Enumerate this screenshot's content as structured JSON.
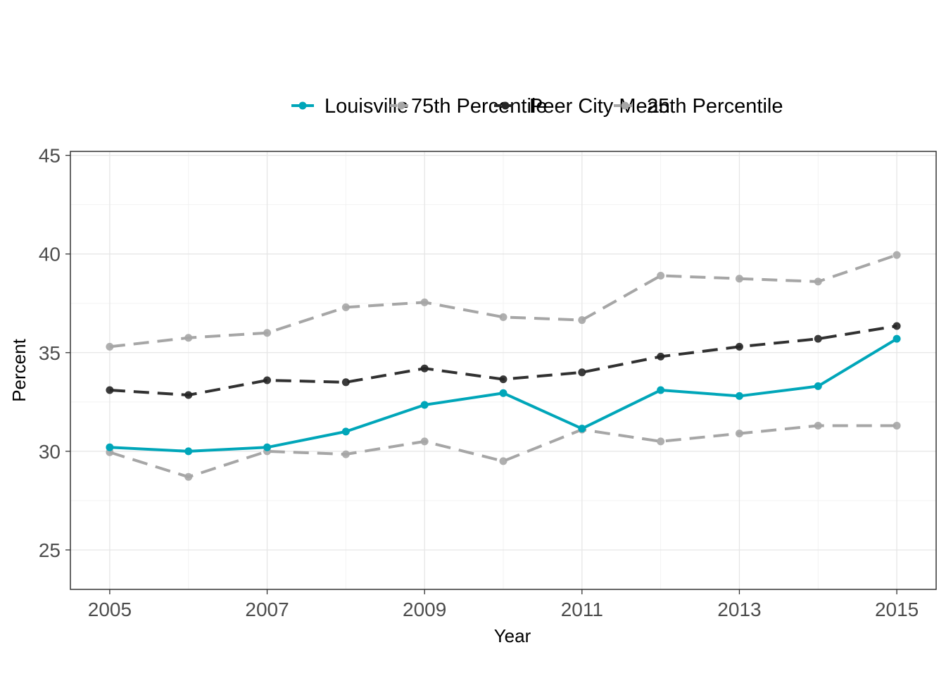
{
  "chart_data": {
    "type": "line",
    "title": "",
    "xlabel": "Year",
    "ylabel": "Percent",
    "x": [
      2005,
      2006,
      2007,
      2008,
      2009,
      2010,
      2011,
      2012,
      2013,
      2014,
      2015
    ],
    "xlim": [
      2004.5,
      2015.5
    ],
    "ylim": [
      23.0,
      45.2
    ],
    "x_ticks": [
      2005,
      2007,
      2009,
      2011,
      2013,
      2015
    ],
    "x_tick_labels": [
      "2005",
      "2007",
      "2009",
      "2011",
      "2013",
      "2015"
    ],
    "y_ticks": [
      25,
      30,
      35,
      40,
      45
    ],
    "y_tick_labels": [
      "25",
      "30",
      "35",
      "40",
      "45"
    ],
    "grid": true,
    "legend_position": "top",
    "series": [
      {
        "name": "Louisville",
        "color": "#00a6b9",
        "dash": "solid",
        "values": [
          30.2,
          30.0,
          30.2,
          31.0,
          32.35,
          32.95,
          31.15,
          33.1,
          32.8,
          33.3,
          35.7
        ]
      },
      {
        "name": "75th Percentile",
        "color": "#a6a6a6",
        "dash": "dashed",
        "values": [
          35.3,
          35.75,
          36.0,
          37.3,
          37.55,
          36.8,
          36.65,
          38.9,
          38.75,
          38.6,
          39.95
        ]
      },
      {
        "name": "Peer City Mean",
        "color": "#262626",
        "dash": "dashed",
        "values": [
          33.1,
          32.85,
          33.6,
          33.5,
          34.2,
          33.65,
          34.0,
          34.8,
          35.3,
          35.7,
          36.35
        ]
      },
      {
        "name": "25th Percentile",
        "color": "#a6a6a6",
        "dash": "dashed",
        "values": [
          29.95,
          28.7,
          30.0,
          29.85,
          30.5,
          29.5,
          31.1,
          30.5,
          30.9,
          31.3,
          31.3
        ]
      }
    ]
  }
}
